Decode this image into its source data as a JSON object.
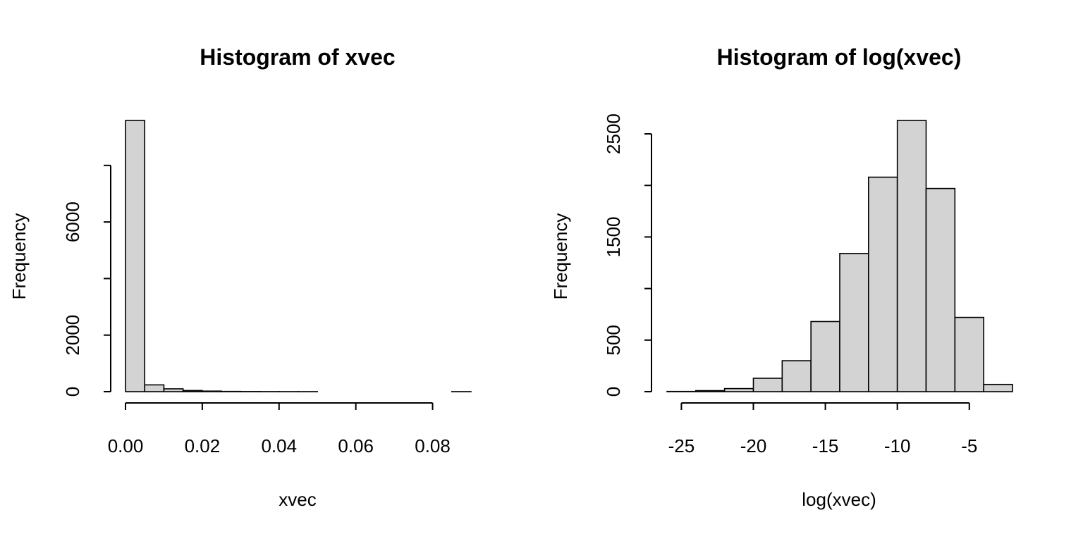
{
  "chart_data": [
    {
      "type": "bar",
      "title": "Histogram of xvec",
      "xlabel": "xvec",
      "ylabel": "Frequency",
      "bin_edges": [
        0,
        0.005,
        0.01,
        0.015,
        0.02,
        0.025,
        0.03,
        0.035,
        0.04,
        0.045,
        0.05,
        0.055,
        0.06,
        0.065,
        0.07,
        0.075,
        0.08,
        0.085,
        0.09
      ],
      "values": [
        9590,
        240,
        100,
        40,
        20,
        8,
        4,
        2,
        1,
        1,
        0,
        0,
        0,
        0,
        0,
        0,
        0,
        1
      ],
      "xlim": [
        0,
        0.09
      ],
      "ylim": [
        0,
        9590
      ],
      "xticks": [
        0.0,
        0.02,
        0.04,
        0.06,
        0.08
      ],
      "xtick_labels": [
        "0.00",
        "0.02",
        "0.04",
        "0.06",
        "0.08"
      ],
      "yticks": [
        0,
        2000,
        4000,
        6000,
        8000
      ],
      "ytick_labels": [
        "0",
        "2000",
        "",
        "6000",
        ""
      ],
      "grid": false,
      "legend": "none"
    },
    {
      "type": "bar",
      "title": "Histogram of log(xvec)",
      "xlabel": "log(xvec)",
      "ylabel": "Frequency",
      "bin_edges": [
        -26,
        -24,
        -22,
        -20,
        -18,
        -16,
        -14,
        -12,
        -10,
        -8,
        -6,
        -4,
        -2
      ],
      "values": [
        2,
        10,
        30,
        130,
        300,
        680,
        1340,
        2080,
        2630,
        1970,
        720,
        70
      ],
      "xlim": [
        -26,
        -2
      ],
      "ylim": [
        0,
        2630
      ],
      "xticks": [
        -25,
        -20,
        -15,
        -10,
        -5
      ],
      "xtick_labels": [
        "-25",
        "-20",
        "-15",
        "-10",
        "-5"
      ],
      "yticks": [
        0,
        500,
        1000,
        1500,
        2000,
        2500
      ],
      "ytick_labels": [
        "0",
        "500",
        "",
        "1500",
        "",
        "2500"
      ],
      "grid": false,
      "legend": "none"
    }
  ]
}
